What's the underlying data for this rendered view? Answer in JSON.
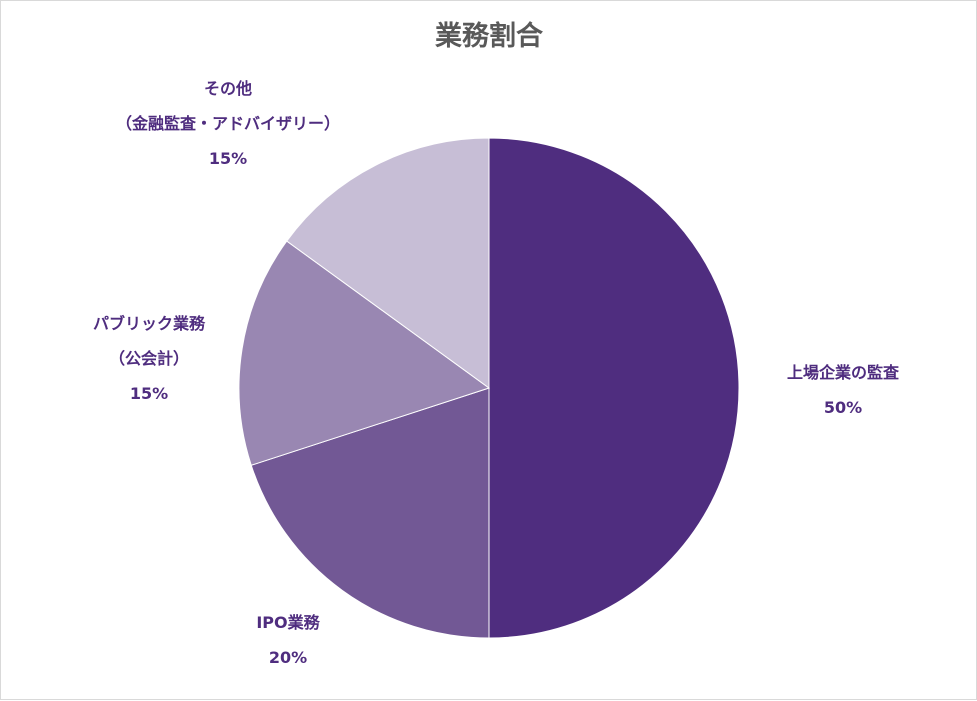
{
  "chart_data": {
    "type": "pie",
    "title": "業務割合",
    "start_angle_deg": 0,
    "direction": "clockwise",
    "slices": [
      {
        "key": "listed",
        "label_lines": [
          "上場企業の監査"
        ],
        "value": 50,
        "value_label": "50%",
        "color": "#4f2d7f"
      },
      {
        "key": "ipo",
        "label_lines": [
          "IPO業務"
        ],
        "value": 20,
        "value_label": "20%",
        "color": "#725895"
      },
      {
        "key": "public",
        "label_lines": [
          "パブリック業務",
          "（公会計）"
        ],
        "value": 15,
        "value_label": "15%",
        "color": "#9987b2"
      },
      {
        "key": "other",
        "label_lines": [
          "その他",
          "（金融監査・アドバイザリー）"
        ],
        "value": 15,
        "value_label": "15%",
        "color": "#c7bed6"
      }
    ]
  }
}
